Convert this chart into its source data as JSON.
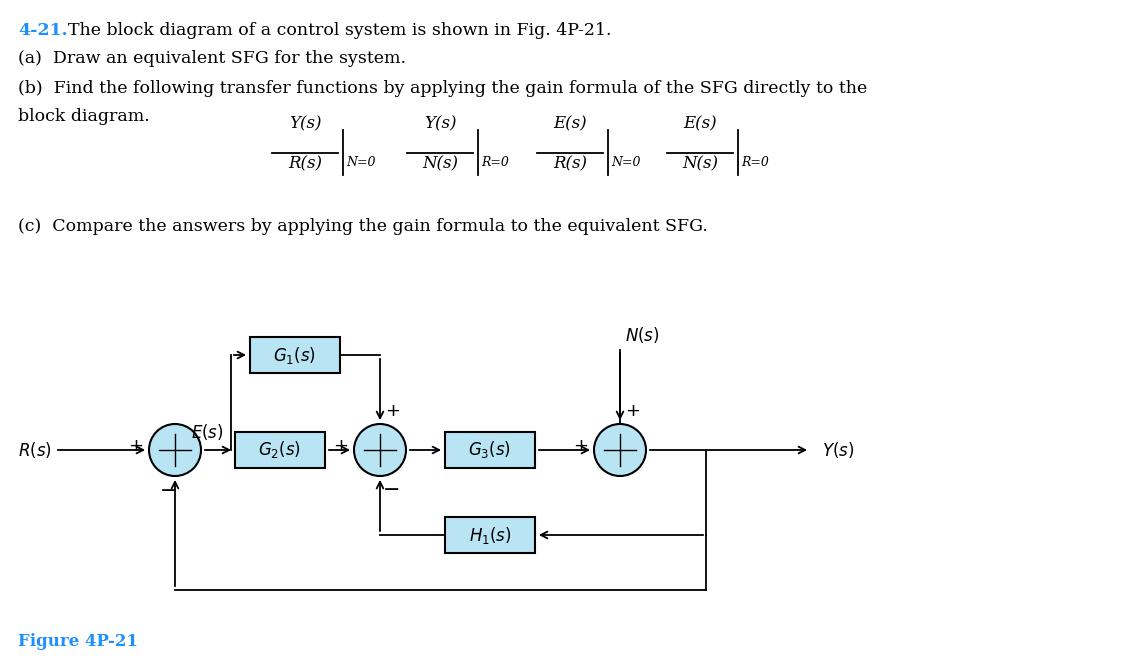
{
  "title_number": "4-21.",
  "title_number_color": "#1E90FF",
  "title_text": "The block diagram of a control system is shown in Fig. 4P-21.",
  "part_a": "(a)  Draw an equivalent SFG for the system.",
  "part_b1": "(b)  Find the following transfer functions by applying the gain formula of the SFG directly to the",
  "part_b2": "block diagram.",
  "part_c": "(c)  Compare the answers by applying the gain formula to the equivalent SFG.",
  "figure_label": "Figure 4P-21",
  "figure_label_color": "#1E90FF",
  "fractions": [
    {
      "num": "Y(s)",
      "den": "R(s)",
      "sub": "N=0"
    },
    {
      "num": "Y(s)",
      "den": "N(s)",
      "sub": "R=0"
    },
    {
      "num": "E(s)",
      "den": "R(s)",
      "sub": "N=0"
    },
    {
      "num": "E(s)",
      "den": "N(s)",
      "sub": "R=0"
    }
  ],
  "block_fill": "#B8E4F4",
  "block_edge": "#000000",
  "summing_fill": "#B8E4F4",
  "summing_edge": "#000000",
  "line_color": "#000000",
  "text_color": "#000000",
  "fs_main": 12.5,
  "fs_label": 12,
  "fs_diagram": 12
}
